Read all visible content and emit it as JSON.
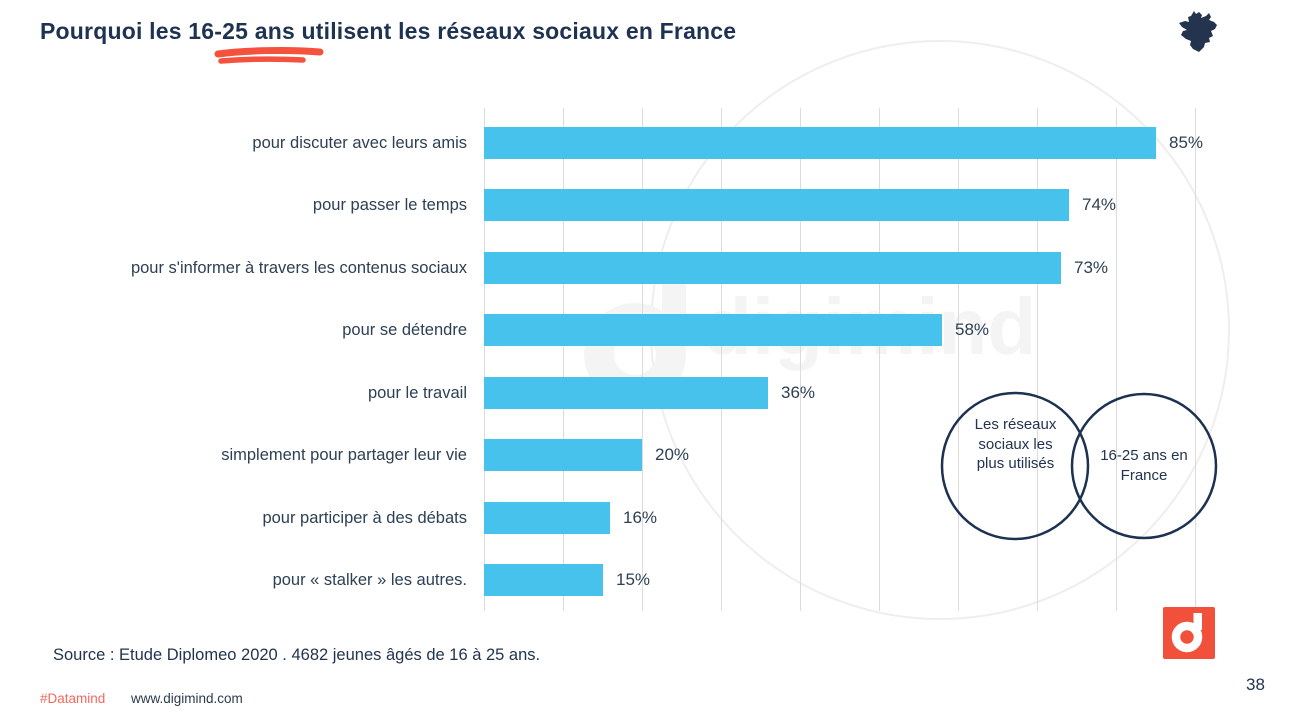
{
  "title": "Pourquoi les 16-25 ans utilisent les réseaux sociaux en France",
  "slide_number": "38",
  "source_text": "Source : Etude Diplomeo 2020 . 4682 jeunes âgés de 16 à 25 ans.",
  "footer": {
    "hashtag": "#Datamind",
    "website": "www.digimind.com"
  },
  "watermark_text": "digimind",
  "annotations": {
    "circle_left": "Les réseaux sociaux les plus utilisés",
    "circle_right": "16-25 ans en France"
  },
  "icons": {
    "france_map": "france-map-icon",
    "digimind_logo": "digimind-d-icon",
    "title_underline": "red-squiggle-underline"
  },
  "colors": {
    "navy": "#1e3252",
    "text": "#2d4054",
    "bar_blue": "#47c2ec",
    "accent_red": "#f4523d",
    "hashtag_red": "#f2695e",
    "logo_red": "#f1503b",
    "gridline": "#dcdcdc",
    "watermark_gray": "#f4f4f4",
    "circle_outline": "#1d3150"
  },
  "chart_data": {
    "type": "bar",
    "orientation": "horizontal",
    "title": "Pourquoi les 16-25 ans utilisent les réseaux sociaux en France",
    "categories": [
      "pour discuter avec leurs amis",
      "pour passer le temps",
      "pour s'informer à travers les contenus sociaux",
      "pour se détendre",
      "pour le travail",
      "simplement pour partager leur vie",
      "pour participer à des débats",
      "pour « stalker » les autres."
    ],
    "values": [
      85,
      74,
      73,
      58,
      36,
      20,
      16,
      15
    ],
    "value_labels": [
      "85%",
      "74%",
      "73%",
      "58%",
      "36%",
      "20%",
      "16%",
      "15%"
    ],
    "unit": "%",
    "xlabel": "",
    "ylabel": "",
    "xlim": [
      0,
      90
    ],
    "gridline_step": 10,
    "grid": true,
    "legend": false
  }
}
